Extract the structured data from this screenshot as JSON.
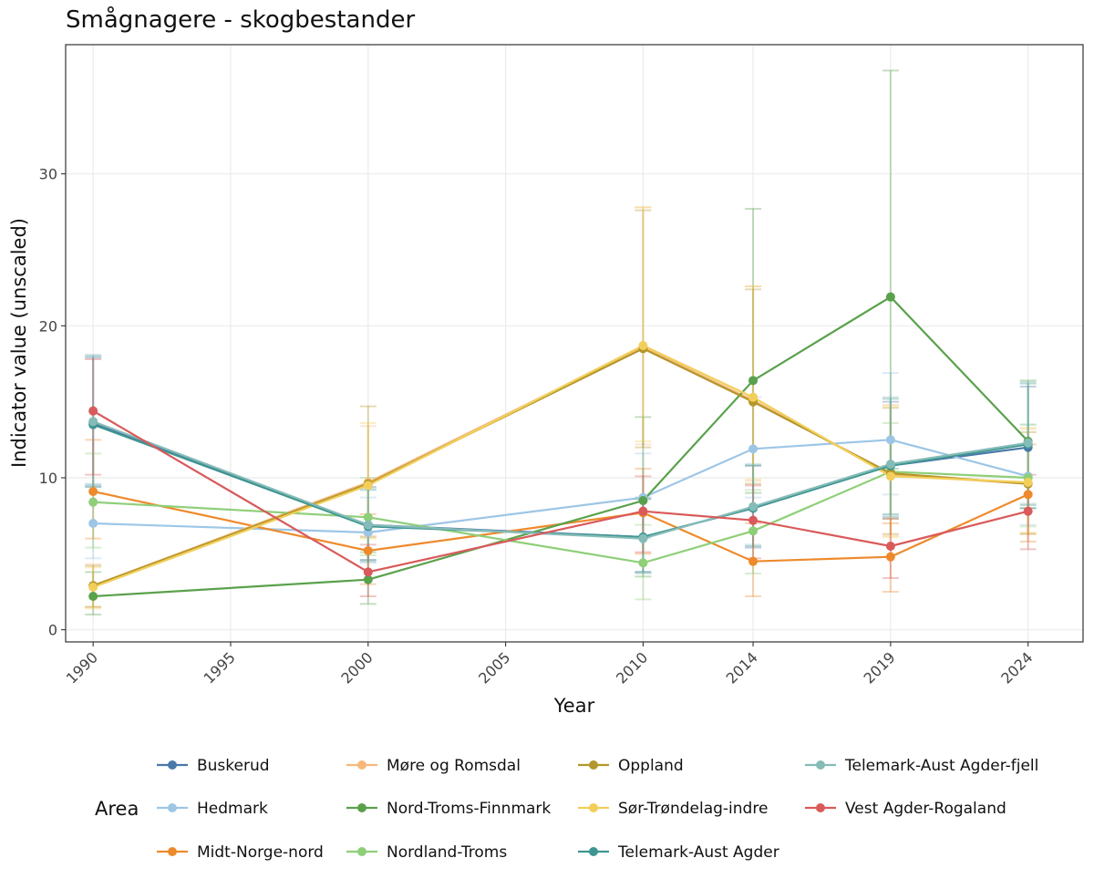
{
  "chart_data": {
    "type": "line",
    "title": "Smågnagere - skogbestander",
    "xlabel": "Year",
    "ylabel": "Indicator value (unscaled)",
    "x_ticks": [
      1990,
      1995,
      2000,
      2005,
      2010,
      2014,
      2019,
      2024
    ],
    "y_ticks": [
      0,
      10,
      20,
      30
    ],
    "xlim": [
      1989,
      2026
    ],
    "ylim": [
      -0.8,
      38.5
    ],
    "grid": true,
    "legend_title": "Area",
    "legend_position": "bottom",
    "x": [
      1990,
      2000,
      2010,
      2014,
      2019,
      2024
    ],
    "series": [
      {
        "name": "Buskerud",
        "color": "#4a78a8",
        "values": [
          13.6,
          6.9,
          6.1,
          8.0,
          10.8,
          12.0
        ],
        "low": [
          9.5,
          4.6,
          3.8,
          5.4,
          7.4,
          8.0
        ],
        "high": [
          18.0,
          9.4,
          8.6,
          10.8,
          15.0,
          16.0
        ]
      },
      {
        "name": "Hedmark",
        "color": "#9dc6e6",
        "values": [
          7.0,
          6.4,
          8.7,
          11.9,
          12.5,
          10.1
        ],
        "low": [
          4.7,
          4.4,
          6.0,
          8.7,
          8.9,
          6.9
        ],
        "high": [
          9.4,
          8.7,
          11.6,
          15.3,
          16.9,
          13.5
        ]
      },
      {
        "name": "Midt-Norge-nord",
        "color": "#ee8a2b",
        "values": [
          9.1,
          5.2,
          7.7,
          4.5,
          4.8,
          8.9
        ],
        "low": [
          6.0,
          3.0,
          5.0,
          2.2,
          2.5,
          5.8
        ],
        "high": [
          12.5,
          7.6,
          10.6,
          7.0,
          7.0,
          12.2
        ]
      },
      {
        "name": "Møre og Romsdal",
        "color": "#f6b87a",
        "values": [
          2.9,
          9.7,
          18.6,
          15.1,
          10.2,
          9.6
        ],
        "low": [
          1.5,
          6.2,
          12.2,
          9.8,
          6.2,
          6.3
        ],
        "high": [
          4.3,
          13.4,
          27.8,
          22.6,
          14.8,
          13.2
        ]
      },
      {
        "name": "Nord-Troms-Finnmark",
        "color": "#5aa14c",
        "values": [
          2.2,
          3.3,
          8.5,
          16.4,
          21.9,
          12.4
        ],
        "low": [
          1.0,
          1.7,
          3.5,
          9.0,
          10.6,
          8.0
        ],
        "high": [
          3.8,
          5.1,
          14.0,
          27.7,
          36.8,
          16.4
        ]
      },
      {
        "name": "Nordland-Troms",
        "color": "#8ecf78",
        "values": [
          8.4,
          7.4,
          4.4,
          6.5,
          10.4,
          10.0
        ],
        "low": [
          5.4,
          4.9,
          2.0,
          3.7,
          7.3,
          6.8
        ],
        "high": [
          11.6,
          10.0,
          6.9,
          9.2,
          13.6,
          13.5
        ]
      },
      {
        "name": "Oppland",
        "color": "#b4962a",
        "values": [
          2.9,
          9.6,
          18.5,
          15.0,
          10.3,
          9.6
        ],
        "low": [
          1.5,
          6.1,
          12.0,
          9.6,
          6.3,
          6.3
        ],
        "high": [
          4.2,
          14.7,
          27.6,
          22.4,
          14.6,
          13.0
        ]
      },
      {
        "name": "Sør-Trøndelag-indre",
        "color": "#f2cf5b",
        "values": [
          2.8,
          9.5,
          18.7,
          15.3,
          10.1,
          9.7
        ],
        "low": [
          1.4,
          6.0,
          12.4,
          9.9,
          6.1,
          6.4
        ],
        "high": [
          4.1,
          13.6,
          27.8,
          22.6,
          14.7,
          13.3
        ]
      },
      {
        "name": "Telemark-Aust Agder",
        "color": "#3e9690",
        "values": [
          13.5,
          6.8,
          6.1,
          8.0,
          10.8,
          12.2
        ],
        "low": [
          9.4,
          4.5,
          3.8,
          5.5,
          7.6,
          8.2
        ],
        "high": [
          17.9,
          9.2,
          8.7,
          10.8,
          15.2,
          16.2
        ]
      },
      {
        "name": "Telemark-Aust Agder-fjell",
        "color": "#86bcb8",
        "values": [
          13.7,
          6.9,
          6.0,
          8.1,
          10.9,
          12.3
        ],
        "low": [
          9.6,
          4.6,
          3.7,
          5.6,
          7.5,
          8.3
        ],
        "high": [
          18.1,
          9.3,
          8.6,
          10.9,
          15.3,
          16.3
        ]
      },
      {
        "name": "Vest Agder-Rogaland",
        "color": "#d95a5a",
        "values": [
          14.4,
          3.8,
          7.8,
          7.2,
          5.5,
          7.8
        ],
        "low": [
          10.2,
          2.2,
          5.1,
          4.7,
          3.4,
          5.3
        ],
        "high": [
          17.8,
          5.6,
          10.1,
          9.5,
          7.3,
          10.2
        ]
      }
    ]
  }
}
